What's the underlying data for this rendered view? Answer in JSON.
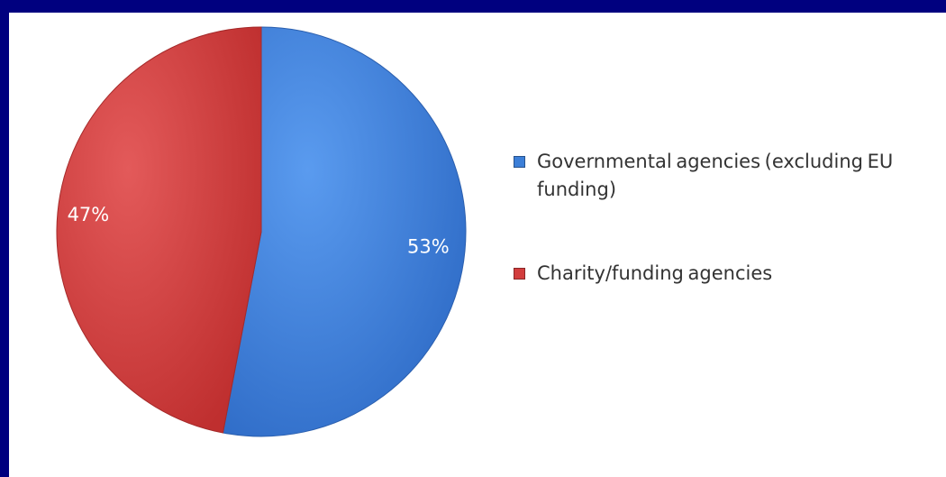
{
  "chart_data": {
    "type": "pie",
    "series": [
      {
        "name": "Governmental agencies (excluding EU funding)",
        "value": 53,
        "label": "53%",
        "color": "#3c7fd8"
      },
      {
        "name": "Charity/funding agencies",
        "value": 47,
        "label": "47%",
        "color": "#d23d3d"
      }
    ],
    "legend": {
      "placement": "right",
      "items": [
        "Governmental agencies (excluding EU funding)",
        "Charity/funding agencies"
      ]
    }
  },
  "colors": {
    "frame_border": "#00007f",
    "background": "#ffffff",
    "label_text": "#ffffff",
    "legend_text": "#333333"
  }
}
